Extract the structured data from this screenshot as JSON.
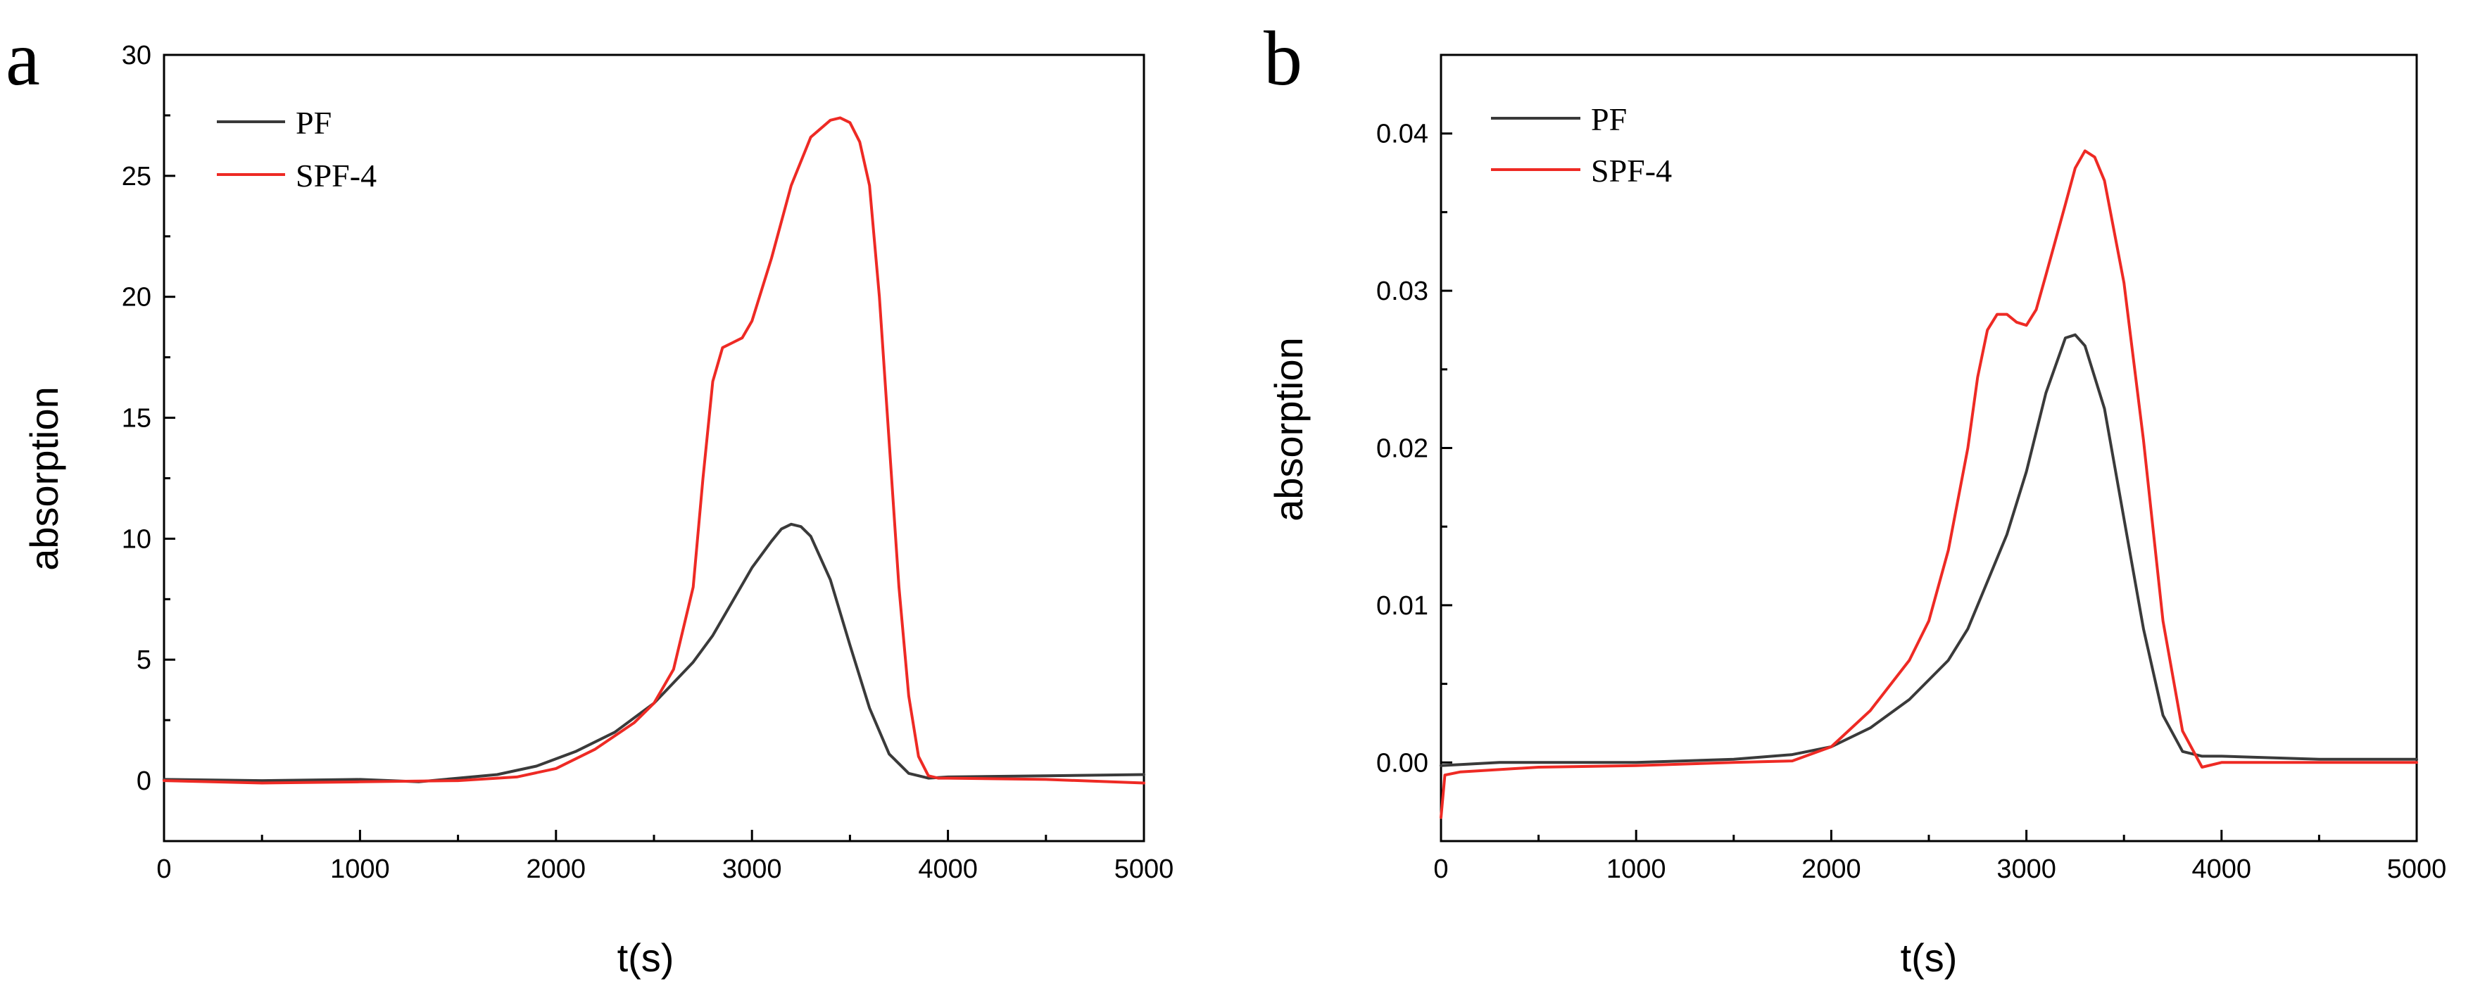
{
  "chart_data": [
    {
      "type": "line",
      "panel_label": "a",
      "xlabel": "t(s)",
      "ylabel": "absorption",
      "xlim": [
        0,
        5000
      ],
      "ylim": [
        -2.5,
        30
      ],
      "xticks": [
        0,
        1000,
        2000,
        3000,
        4000,
        5000
      ],
      "yticks": [
        0,
        5,
        10,
        15,
        20,
        25,
        30
      ],
      "xtick_labels": [
        "0",
        "1000",
        "2000",
        "3000",
        "4000",
        "5000"
      ],
      "ytick_labels": [
        "0",
        "5",
        "10",
        "15",
        "20",
        "25",
        "30"
      ],
      "legend_position": "top-left",
      "series": [
        {
          "name": "PF",
          "color": "#3a3a3a",
          "x": [
            0,
            500,
            1000,
            1300,
            1500,
            1700,
            1900,
            2100,
            2300,
            2500,
            2700,
            2800,
            2900,
            3000,
            3100,
            3150,
            3200,
            3250,
            3300,
            3400,
            3500,
            3600,
            3700,
            3800,
            3900,
            4000,
            4500,
            5000
          ],
          "y": [
            0.05,
            0.0,
            0.05,
            -0.05,
            0.1,
            0.25,
            0.6,
            1.2,
            2.0,
            3.2,
            4.9,
            6.0,
            7.4,
            8.8,
            9.9,
            10.4,
            10.6,
            10.5,
            10.1,
            8.3,
            5.6,
            3.0,
            1.1,
            0.3,
            0.1,
            0.15,
            0.2,
            0.25
          ]
        },
        {
          "name": "SPF-4",
          "color": "#ee2a24",
          "x": [
            0,
            500,
            1000,
            1500,
            1800,
            2000,
            2200,
            2400,
            2500,
            2600,
            2700,
            2750,
            2800,
            2850,
            2900,
            2950,
            3000,
            3100,
            3200,
            3300,
            3400,
            3450,
            3500,
            3550,
            3600,
            3650,
            3700,
            3750,
            3800,
            3850,
            3900,
            3950,
            4000,
            4500,
            5000
          ],
          "y": [
            0.0,
            -0.1,
            -0.05,
            0.0,
            0.15,
            0.5,
            1.3,
            2.4,
            3.2,
            4.6,
            8.0,
            12.5,
            16.5,
            17.9,
            18.1,
            18.3,
            19.0,
            21.6,
            24.6,
            26.6,
            27.3,
            27.4,
            27.2,
            26.4,
            24.6,
            20.0,
            14.0,
            8.0,
            3.5,
            1.0,
            0.2,
            0.1,
            0.1,
            0.05,
            -0.1
          ]
        }
      ]
    },
    {
      "type": "line",
      "panel_label": "b",
      "xlabel": "t(s)",
      "ylabel": "absorption",
      "xlim": [
        0,
        5000
      ],
      "ylim": [
        -0.005,
        0.045
      ],
      "xticks": [
        0,
        1000,
        2000,
        3000,
        4000,
        5000
      ],
      "yticks": [
        0.0,
        0.01,
        0.02,
        0.03,
        0.04
      ],
      "xtick_labels": [
        "0",
        "1000",
        "2000",
        "3000",
        "4000",
        "5000"
      ],
      "ytick_labels": [
        "0.00",
        "0.01",
        "0.02",
        "0.03",
        "0.04"
      ],
      "legend_position": "top-left",
      "series": [
        {
          "name": "PF",
          "color": "#3a3a3a",
          "x": [
            0,
            300,
            500,
            1000,
            1500,
            1800,
            2000,
            2200,
            2400,
            2600,
            2700,
            2800,
            2900,
            3000,
            3100,
            3200,
            3250,
            3300,
            3400,
            3500,
            3600,
            3700,
            3800,
            3900,
            4000,
            4500,
            5000
          ],
          "y": [
            -0.0002,
            0.0,
            0.0,
            0.0,
            0.0002,
            0.0005,
            0.001,
            0.0022,
            0.004,
            0.0065,
            0.0085,
            0.0115,
            0.0145,
            0.0185,
            0.0235,
            0.027,
            0.0272,
            0.0265,
            0.0225,
            0.0155,
            0.0085,
            0.003,
            0.0007,
            0.0004,
            0.0004,
            0.0002,
            0.0002
          ]
        },
        {
          "name": "SPF-4",
          "color": "#ee2a24",
          "x": [
            0,
            20,
            100,
            500,
            1000,
            1500,
            1800,
            2000,
            2200,
            2400,
            2500,
            2600,
            2700,
            2750,
            2800,
            2850,
            2900,
            2950,
            3000,
            3050,
            3100,
            3200,
            3250,
            3300,
            3350,
            3400,
            3500,
            3600,
            3700,
            3800,
            3900,
            4000,
            4500,
            5000
          ],
          "y": [
            -0.0035,
            -0.0008,
            -0.0006,
            -0.0003,
            -0.0002,
            0.0,
            0.0001,
            0.001,
            0.0033,
            0.0065,
            0.009,
            0.0135,
            0.02,
            0.0245,
            0.0275,
            0.0285,
            0.0285,
            0.028,
            0.0278,
            0.0288,
            0.031,
            0.0355,
            0.0378,
            0.0389,
            0.0385,
            0.037,
            0.0305,
            0.0205,
            0.009,
            0.002,
            -0.0003,
            0.0,
            0.0,
            0.0
          ]
        }
      ]
    }
  ]
}
